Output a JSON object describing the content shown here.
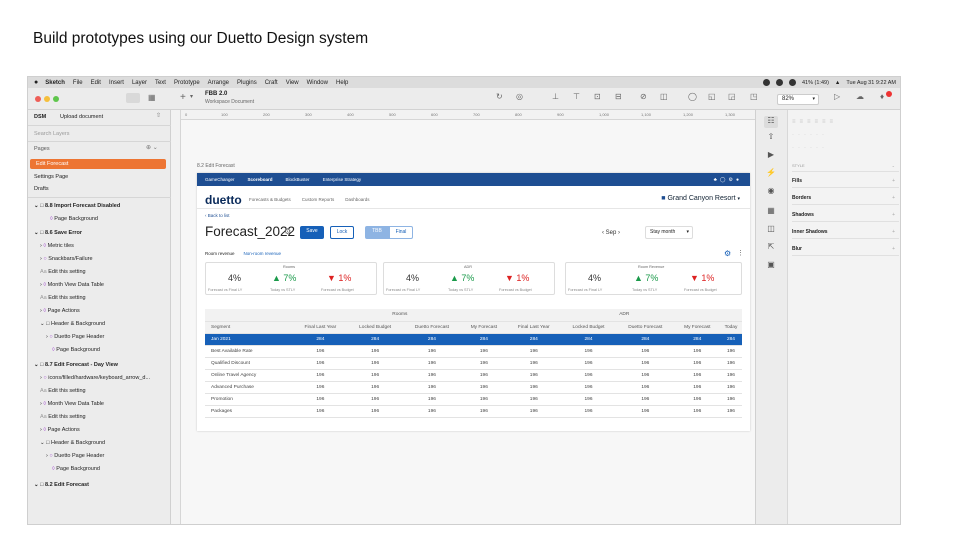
{
  "heading": "Build prototypes using our Duetto Design system",
  "menubar": {
    "app": "Sketch",
    "items": [
      "File",
      "Edit",
      "Insert",
      "Layer",
      "Text",
      "Prototype",
      "Arrange",
      "Plugins",
      "Craft",
      "View",
      "Window",
      "Help"
    ],
    "battery": "41% (1:49)",
    "datetime": "Tue Aug 31  9:22 AM"
  },
  "toolbar": {
    "doc_title": "FBB 2.0",
    "doc_sub": "Workspace Document",
    "zoom": "82%",
    "upload": "Upload document",
    "dsm": "DSM"
  },
  "sidebar": {
    "search_placeholder": "Search Layers",
    "pages_label": "Pages",
    "pages": [
      "Edit Forecast",
      "Settings Page",
      "Drafts"
    ],
    "layers": [
      "8.8 Import Forecast Disabled",
      "Page Background",
      "8.6 Save Error",
      "Metric tiles",
      "Snackbars/Failure",
      "Edit this setting",
      "Month View Data Table",
      "Edit this setting",
      "Page Actions",
      "Header & Background",
      "Duetto Page Header",
      "Page Background",
      "8.7 Edit Forecast - Day View",
      "icons/filled/hardware/keyboard_arrow_d...",
      "Edit this setting",
      "Month View Data Table",
      "Edit this setting",
      "Page Actions",
      "Header & Background",
      "Duetto Page Header",
      "Page Background",
      "8.2 Edit Forecast"
    ]
  },
  "ruler": [
    "0",
    "100",
    "200",
    "300",
    "400",
    "500",
    "600",
    "700",
    "800",
    "900",
    "1,000",
    "1,100",
    "1,200",
    "1,300"
  ],
  "artboard_label": "8.2 Edit Forecast",
  "app": {
    "nav": [
      "GameChanger",
      "Scoreboard",
      "BlockBuster",
      "Enterprise Strategy"
    ],
    "logo": "duetto",
    "subnav": [
      "Forecasts & Budgets",
      "Custom Reports",
      "Dashboards"
    ],
    "property": "Grand Canyon Resort",
    "back": "Back to list",
    "title": "Forecast_2022",
    "save": "Save",
    "lock": "Lock",
    "tbb": "TBB",
    "final": "Final",
    "month": "Sep",
    "staymonth": "Stay month",
    "tabs": [
      "Room revenue",
      "Non-room revenue"
    ],
    "metric_groups": [
      {
        "title": "Rooms",
        "v1": "4%",
        "l1": "Forecast vs Final LY",
        "v2": "7%",
        "l2": "Today vs STLY",
        "v3": "1%",
        "l3": "Forecast vs Budget"
      },
      {
        "title": "ADR",
        "v1": "4%",
        "l1": "Forecast vs Final LY",
        "v2": "7%",
        "l2": "Today vs STLY",
        "v3": "1%",
        "l3": "Forecast vs Budget"
      },
      {
        "title": "Room Revenue",
        "v1": "4%",
        "l1": "Forecast vs Final LY",
        "v2": "7%",
        "l2": "Today vs STLY",
        "v3": "1%",
        "l3": "Forecast vs Budget"
      }
    ],
    "table": {
      "group_headers": [
        "Rooms",
        "ADR"
      ],
      "columns": [
        "Segment",
        "Final Last Year",
        "Locked Budget",
        "Duetto Forecast",
        "My Forecast",
        "Final Last Year",
        "Locked Budget",
        "Duetto Forecast",
        "My Forecast",
        "Today"
      ],
      "rows": [
        [
          "Jan 2021",
          "284",
          "284",
          "284",
          "284",
          "284",
          "284",
          "284",
          "284",
          "284"
        ],
        [
          "Best Available Rate",
          "196",
          "196",
          "196",
          "196",
          "196",
          "196",
          "196",
          "196",
          "196"
        ],
        [
          "Qualified Discount",
          "196",
          "196",
          "196",
          "196",
          "196",
          "196",
          "196",
          "196",
          "196"
        ],
        [
          "Online Travel Agency",
          "196",
          "196",
          "196",
          "196",
          "196",
          "196",
          "196",
          "196",
          "196"
        ],
        [
          "Advanced Purchase",
          "196",
          "196",
          "196",
          "196",
          "196",
          "196",
          "196",
          "196",
          "196"
        ],
        [
          "Promotion",
          "196",
          "196",
          "196",
          "196",
          "196",
          "196",
          "196",
          "196",
          "196"
        ],
        [
          "Packages",
          "196",
          "196",
          "196",
          "196",
          "196",
          "196",
          "196",
          "196",
          "196"
        ]
      ]
    }
  },
  "inspector": {
    "style": "STYLE",
    "sections": [
      "Fills",
      "Borders",
      "Shadows",
      "Inner Shadows",
      "Blur"
    ]
  },
  "colors": {
    "accent": "#ed7533",
    "nav": "#1e4e92",
    "selected_row": "#1660b8"
  }
}
